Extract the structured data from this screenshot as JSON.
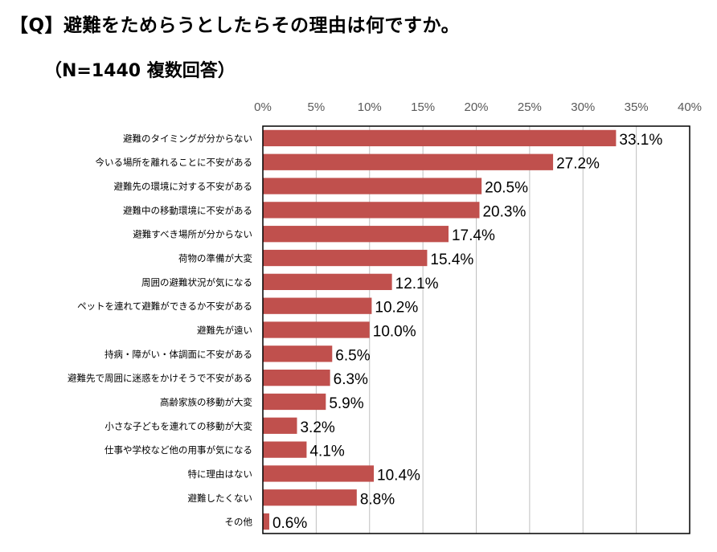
{
  "header": {
    "title": "【Q】避難をためらうとしたらその理由は何ですか。",
    "subtitle": "（N=1440 複数回答）"
  },
  "chart_data": {
    "type": "bar",
    "orientation": "horizontal",
    "xlim": [
      0,
      40
    ],
    "tick_step": 5,
    "tick_suffix": "%",
    "value_suffix": "%",
    "grid": true,
    "bar_color": "#c0504d",
    "categories": [
      "避難のタイミングが分からない",
      "今いる場所を離れることに不安がある",
      "避難先の環境に対する不安がある",
      "避難中の移動環境に不安がある",
      "避難すべき場所が分からない",
      "荷物の準備が大変",
      "周囲の避難状況が気になる",
      "ペットを連れて避難ができるか不安がある",
      "避難先が遠い",
      "持病・障がい・体調面に不安がある",
      "避難先で周囲に迷惑をかけそうで不安がある",
      "高齢家族の移動が大変",
      "小さな子どもを連れての移動が大変",
      "仕事や学校など他の用事が気になる",
      "特に理由はない",
      "避難したくない",
      "その他"
    ],
    "values": [
      33.1,
      27.2,
      20.5,
      20.3,
      17.4,
      15.4,
      12.1,
      10.2,
      10.0,
      6.5,
      6.3,
      5.9,
      3.2,
      4.1,
      10.4,
      8.8,
      0.6
    ]
  }
}
